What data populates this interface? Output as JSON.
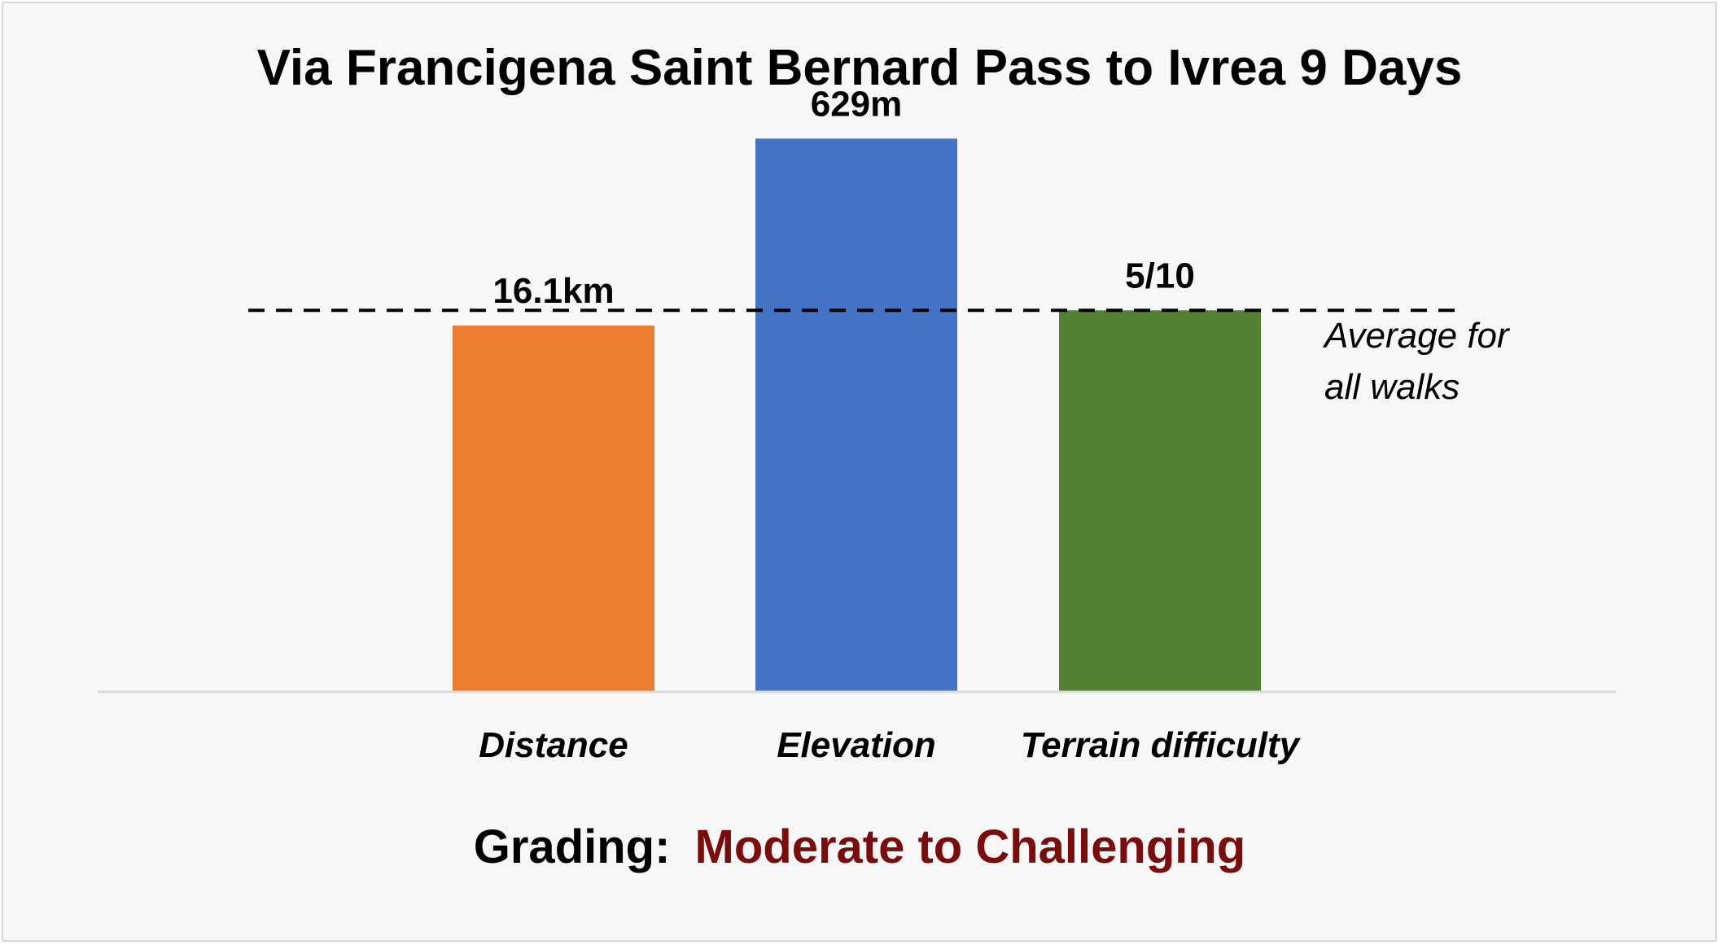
{
  "chart_data": {
    "type": "bar",
    "title": "Via Francigena  Saint Bernard Pass to Ivrea 9 Days",
    "xlabel": "",
    "ylabel": "",
    "grid": false,
    "categories": [
      "Distance",
      "Elevation",
      "Terrain difficulty"
    ],
    "values": [
      0.96,
      1.45,
      1.0
    ],
    "value_labels": [
      "16.1km",
      "629m",
      "5/10"
    ],
    "colors": [
      "#ed7d31",
      "#4472c4",
      "#548235"
    ],
    "ylim": [
      0,
      1.6
    ],
    "reference_line": {
      "value": 1.0,
      "label_line1": "Average for",
      "label_line2": "all walks",
      "style": "dashed"
    },
    "footer": {
      "prefix": "Grading:",
      "grade": "Moderate to Challenging",
      "grade_color": "#7b0c0c"
    }
  }
}
